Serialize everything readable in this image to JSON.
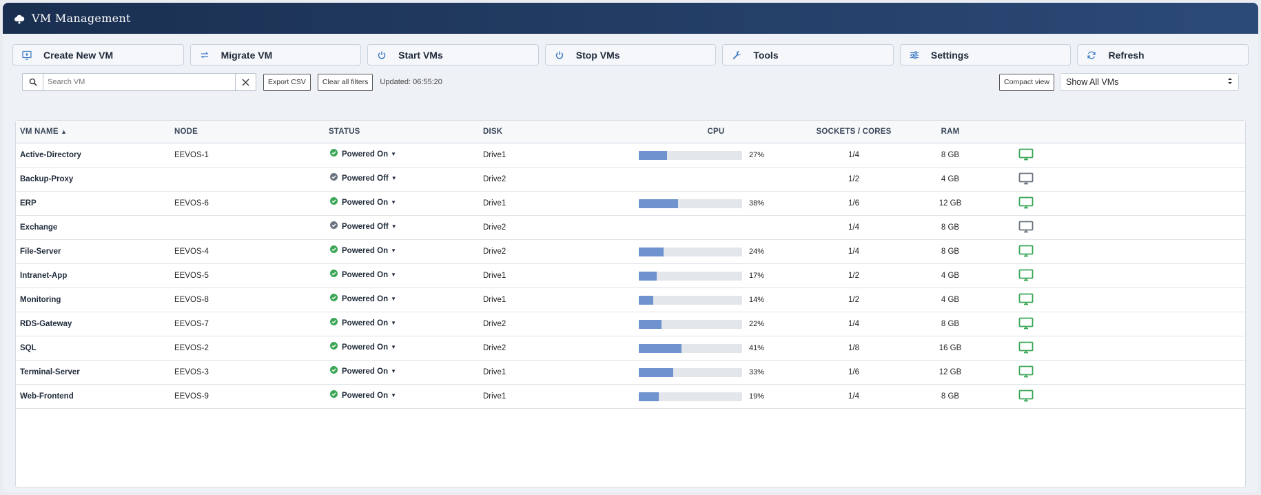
{
  "app": {
    "title": "VM Management"
  },
  "toolbar": [
    {
      "label": "Create New VM",
      "icon": "monitor-plus-icon",
      "name": "create-vm-button"
    },
    {
      "label": "Migrate VM",
      "icon": "migrate-icon",
      "name": "migrate-vm-button"
    },
    {
      "label": "Start VMs",
      "icon": "power-icon",
      "name": "start-vms-button"
    },
    {
      "label": "Stop VMs",
      "icon": "power-icon",
      "name": "stop-vms-button"
    },
    {
      "label": "Tools",
      "icon": "wrench-icon",
      "name": "tools-button"
    },
    {
      "label": "Settings",
      "icon": "sliders-icon",
      "name": "settings-button"
    },
    {
      "label": "Refresh",
      "icon": "refresh-icon",
      "name": "refresh-button"
    }
  ],
  "filters": {
    "search_placeholder": "Search VM",
    "search_value": "",
    "export_label": "Export CSV",
    "clear_label": "Clear all filters",
    "updated_text": "Updated: 06:55:20",
    "compact_label": "Compact view",
    "view_select": "Show All VMs"
  },
  "table": {
    "headers": {
      "name": "VM NAME",
      "node": "NODE",
      "status": "STATUS",
      "disk": "DISK",
      "cpu": "CPU",
      "sockets": "SOCKETS / CORES",
      "ram": "RAM"
    },
    "sort_indicator": "▲",
    "rows": [
      {
        "name": "Active-Directory",
        "node": "EEVOS-1",
        "status": "Powered On",
        "on": true,
        "disk": "Drive1",
        "cpu": 27,
        "cpu_label": "27%",
        "sockets": "1/4",
        "ram": "8 GB"
      },
      {
        "name": "Backup-Proxy",
        "node": "",
        "status": "Powered Off",
        "on": false,
        "disk": "Drive2",
        "cpu": null,
        "cpu_label": "",
        "sockets": "1/2",
        "ram": "4 GB"
      },
      {
        "name": "ERP",
        "node": "EEVOS-6",
        "status": "Powered On",
        "on": true,
        "disk": "Drive1",
        "cpu": 38,
        "cpu_label": "38%",
        "sockets": "1/6",
        "ram": "12 GB"
      },
      {
        "name": "Exchange",
        "node": "",
        "status": "Powered Off",
        "on": false,
        "disk": "Drive2",
        "cpu": null,
        "cpu_label": "",
        "sockets": "1/4",
        "ram": "8 GB"
      },
      {
        "name": "File-Server",
        "node": "EEVOS-4",
        "status": "Powered On",
        "on": true,
        "disk": "Drive2",
        "cpu": 24,
        "cpu_label": "24%",
        "sockets": "1/4",
        "ram": "8 GB"
      },
      {
        "name": "Intranet-App",
        "node": "EEVOS-5",
        "status": "Powered On",
        "on": true,
        "disk": "Drive1",
        "cpu": 17,
        "cpu_label": "17%",
        "sockets": "1/2",
        "ram": "4 GB"
      },
      {
        "name": "Monitoring",
        "node": "EEVOS-8",
        "status": "Powered On",
        "on": true,
        "disk": "Drive1",
        "cpu": 14,
        "cpu_label": "14%",
        "sockets": "1/2",
        "ram": "4 GB"
      },
      {
        "name": "RDS-Gateway",
        "node": "EEVOS-7",
        "status": "Powered On",
        "on": true,
        "disk": "Drive2",
        "cpu": 22,
        "cpu_label": "22%",
        "sockets": "1/4",
        "ram": "8 GB"
      },
      {
        "name": "SQL",
        "node": "EEVOS-2",
        "status": "Powered On",
        "on": true,
        "disk": "Drive2",
        "cpu": 41,
        "cpu_label": "41%",
        "sockets": "1/8",
        "ram": "16 GB"
      },
      {
        "name": "Terminal-Server",
        "node": "EEVOS-3",
        "status": "Powered On",
        "on": true,
        "disk": "Drive1",
        "cpu": 33,
        "cpu_label": "33%",
        "sockets": "1/6",
        "ram": "12 GB"
      },
      {
        "name": "Web-Frontend",
        "node": "EEVOS-9",
        "status": "Powered On",
        "on": true,
        "disk": "Drive1",
        "cpu": 19,
        "cpu_label": "19%",
        "sockets": "1/4",
        "ram": "8 GB"
      }
    ]
  },
  "colors": {
    "on": "#3aa656",
    "off": "#6b7280",
    "cpu_fill": "#6e93cf",
    "header_bg": "#1a2f50",
    "icon_accent": "#3a78c4"
  }
}
